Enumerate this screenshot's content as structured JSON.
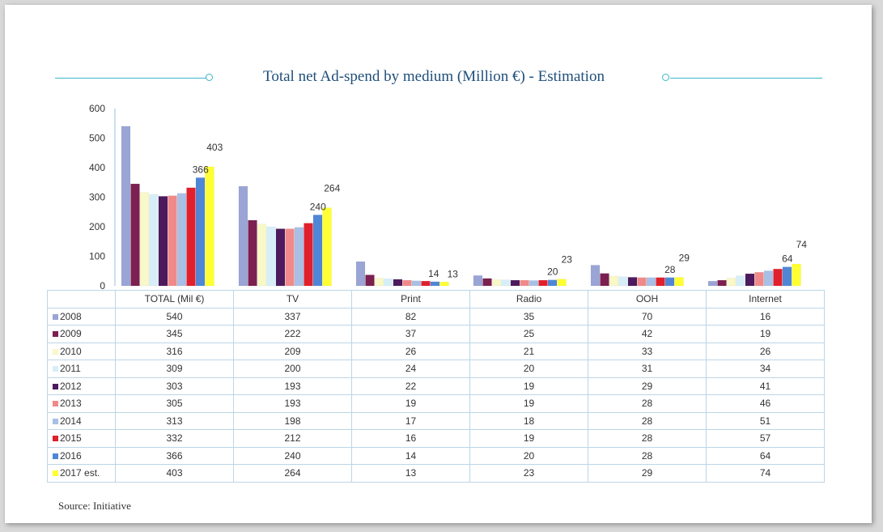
{
  "chart_data": {
    "type": "bar",
    "title": "Total net Ad-spend by medium (Million €) - Estimation",
    "categories": [
      "TOTAL  (Mil €)",
      "TV",
      "Print",
      "Radio",
      "OOH",
      "Internet"
    ],
    "ylim": [
      0,
      600
    ],
    "yticks": [
      "0",
      "100",
      "200",
      "300",
      "400",
      "500",
      "600"
    ],
    "series": [
      {
        "name": "2008",
        "color": "#9aa5d6",
        "values": [
          540,
          337,
          82,
          35,
          70,
          16
        ]
      },
      {
        "name": "2009",
        "color": "#7b2050",
        "values": [
          345,
          222,
          37,
          25,
          42,
          19
        ]
      },
      {
        "name": "2010",
        "color": "#f8f8c8",
        "values": [
          316,
          209,
          26,
          21,
          33,
          26
        ]
      },
      {
        "name": "2011",
        "color": "#d6eef8",
        "values": [
          309,
          200,
          24,
          20,
          31,
          34
        ]
      },
      {
        "name": "2012",
        "color": "#4d1a5e",
        "values": [
          303,
          193,
          22,
          19,
          29,
          41
        ]
      },
      {
        "name": "2013",
        "color": "#f08a8a",
        "values": [
          305,
          193,
          19,
          19,
          28,
          46
        ]
      },
      {
        "name": "2014",
        "color": "#a9c0e6",
        "values": [
          313,
          198,
          17,
          18,
          28,
          51
        ]
      },
      {
        "name": "2015",
        "color": "#e0202c",
        "values": [
          332,
          212,
          16,
          19,
          28,
          57
        ]
      },
      {
        "name": "2016",
        "color": "#4f87d6",
        "values": [
          366,
          240,
          14,
          20,
          28,
          64
        ]
      },
      {
        "name": "2017 est.",
        "color": "#ffff33",
        "values": [
          403,
          264,
          13,
          23,
          29,
          74
        ]
      }
    ],
    "data_labels": [
      {
        "category": 0,
        "series": 8,
        "text": "366"
      },
      {
        "category": 0,
        "series": 9,
        "text": "403"
      },
      {
        "category": 1,
        "series": 8,
        "text": "240"
      },
      {
        "category": 1,
        "series": 9,
        "text": "264"
      },
      {
        "category": 2,
        "series": 8,
        "text": "14"
      },
      {
        "category": 2,
        "series": 9,
        "text": "13"
      },
      {
        "category": 3,
        "series": 8,
        "text": "20"
      },
      {
        "category": 3,
        "series": 9,
        "text": "23"
      },
      {
        "category": 4,
        "series": 8,
        "text": "28"
      },
      {
        "category": 4,
        "series": 9,
        "text": "29"
      },
      {
        "category": 5,
        "series": 8,
        "text": "64"
      },
      {
        "category": 5,
        "series": 9,
        "text": "74"
      }
    ],
    "legend": "data-table",
    "grid": false
  },
  "source": "Source: Initiative"
}
